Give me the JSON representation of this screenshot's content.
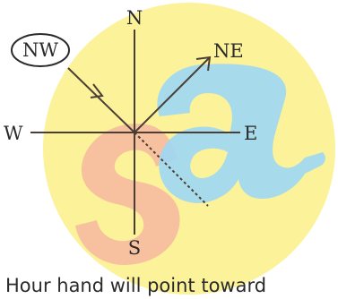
{
  "compass": {
    "north": "N",
    "south": "S",
    "east": "E",
    "west": "W",
    "northeast": "NE",
    "northwest": "NW"
  },
  "watermark": {
    "text": "sa"
  },
  "caption": "Hour hand will point toward",
  "colors": {
    "background_circle": "#fbf29a",
    "watermark_s": "#f6b9a0",
    "watermark_a": "#9fd8f2",
    "lines": "#4a3e36"
  }
}
